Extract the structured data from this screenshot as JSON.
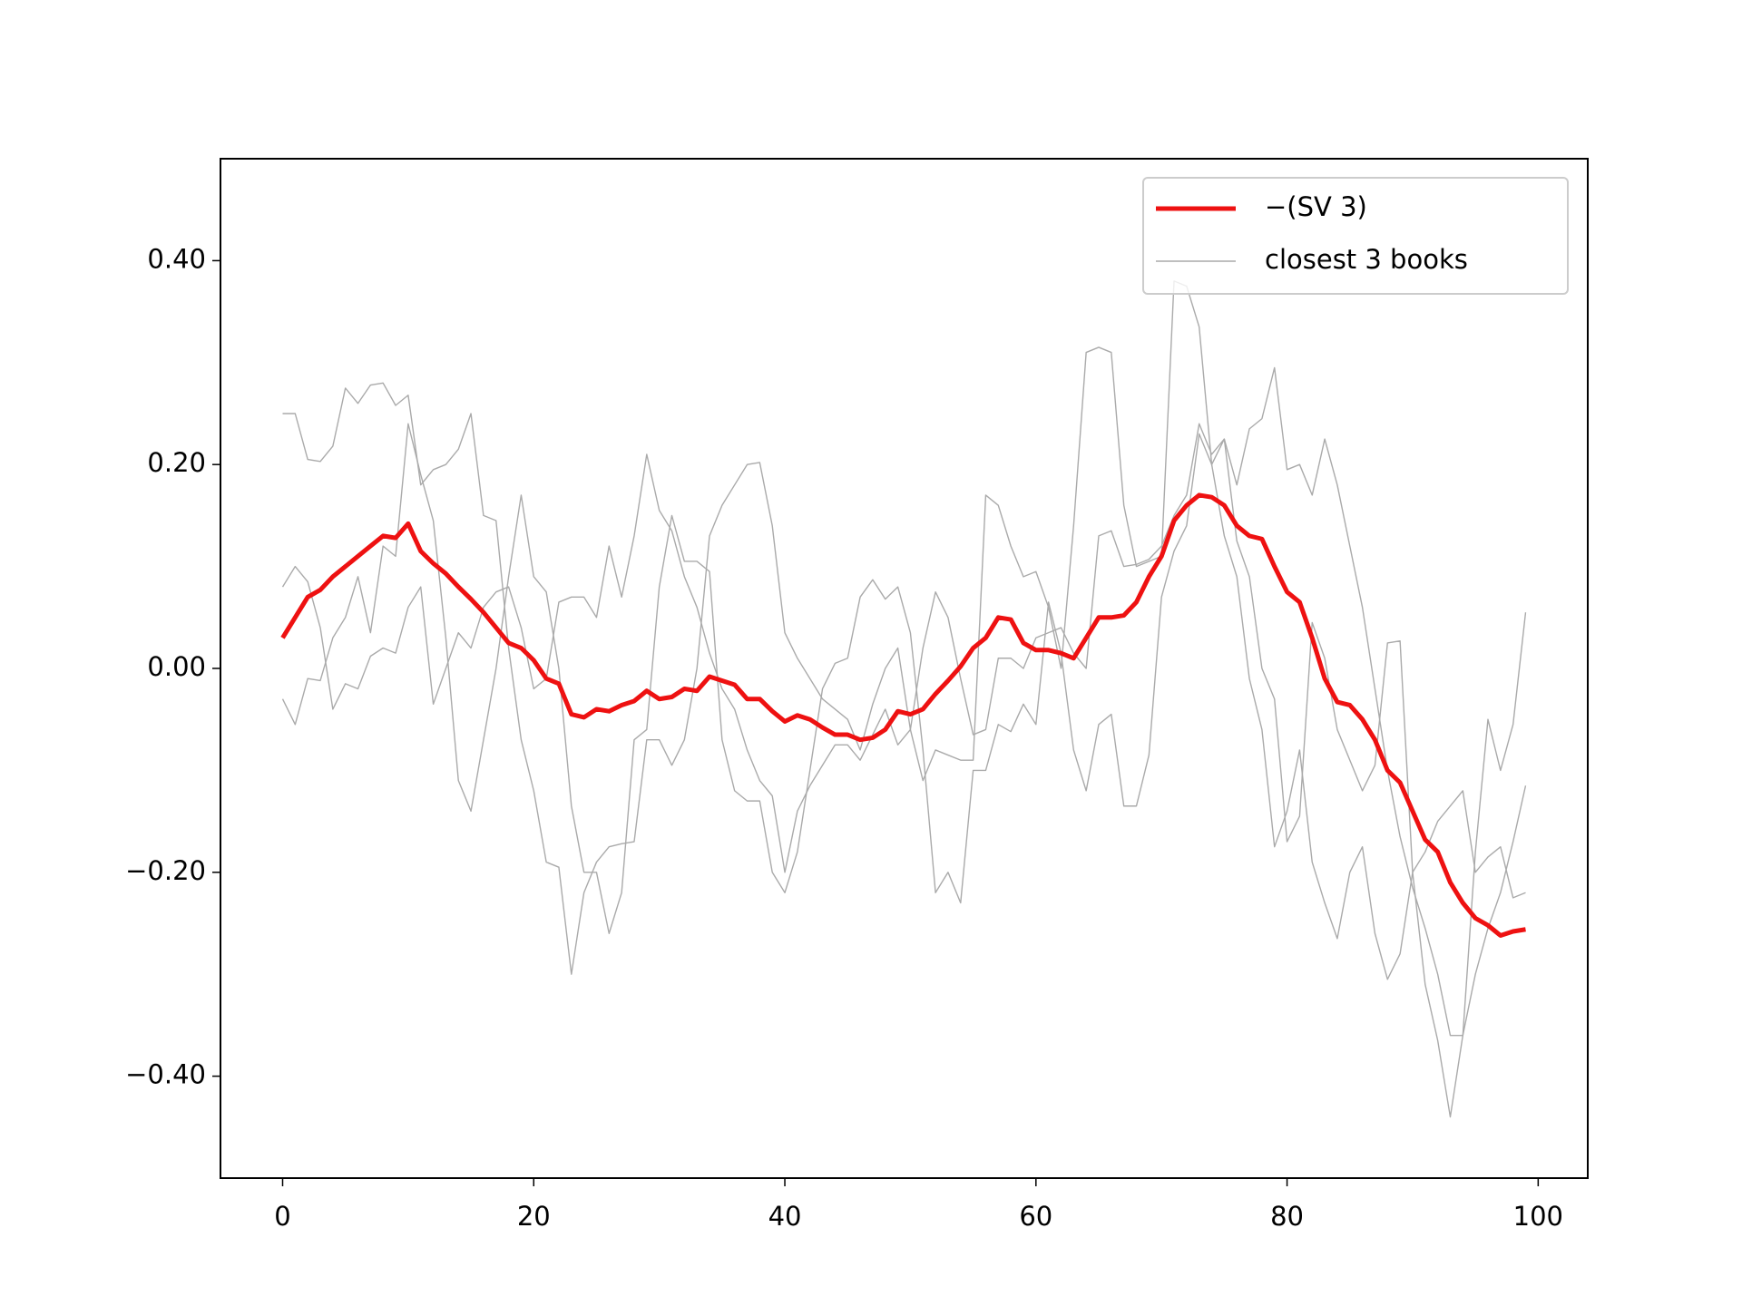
{
  "chart_data": {
    "type": "line",
    "x": [
      0,
      1,
      2,
      3,
      4,
      5,
      6,
      7,
      8,
      9,
      10,
      11,
      12,
      13,
      14,
      15,
      16,
      17,
      18,
      19,
      20,
      21,
      22,
      23,
      24,
      25,
      26,
      27,
      28,
      29,
      30,
      31,
      32,
      33,
      34,
      35,
      36,
      37,
      38,
      39,
      40,
      41,
      42,
      43,
      44,
      45,
      46,
      47,
      48,
      49,
      50,
      51,
      52,
      53,
      54,
      55,
      56,
      57,
      58,
      59,
      60,
      61,
      62,
      63,
      64,
      65,
      66,
      67,
      68,
      69,
      70,
      71,
      72,
      73,
      74,
      75,
      76,
      77,
      78,
      79,
      80,
      81,
      82,
      83,
      84,
      85,
      86,
      87,
      88,
      89,
      90,
      91,
      92,
      93,
      94,
      95,
      96,
      97,
      98,
      99
    ],
    "series": [
      {
        "name": "−(SV 3)",
        "color": "#ee1111",
        "values": [
          0.03,
          0.05,
          0.07,
          0.077,
          0.09,
          0.1,
          0.11,
          0.12,
          0.13,
          0.128,
          0.142,
          0.115,
          0.103,
          0.093,
          0.08,
          0.068,
          0.055,
          0.04,
          0.025,
          0.02,
          0.008,
          -0.01,
          -0.015,
          -0.045,
          -0.048,
          -0.04,
          -0.042,
          -0.036,
          -0.032,
          -0.022,
          -0.03,
          -0.028,
          -0.02,
          -0.022,
          -0.008,
          -0.012,
          -0.016,
          -0.03,
          -0.03,
          -0.042,
          -0.052,
          -0.046,
          -0.05,
          -0.058,
          -0.065,
          -0.065,
          -0.07,
          -0.068,
          -0.06,
          -0.042,
          -0.045,
          -0.04,
          -0.025,
          -0.012,
          0.002,
          0.02,
          0.03,
          0.05,
          0.048,
          0.025,
          0.018,
          0.018,
          0.015,
          0.01,
          0.03,
          0.05,
          0.05,
          0.052,
          0.065,
          0.09,
          0.11,
          0.145,
          0.16,
          0.17,
          0.168,
          0.16,
          0.14,
          0.13,
          0.127,
          0.1,
          0.075,
          0.065,
          0.03,
          -0.01,
          -0.033,
          -0.036,
          -0.05,
          -0.07,
          -0.1,
          -0.112,
          -0.14,
          -0.168,
          -0.18,
          -0.21,
          -0.23,
          -0.245,
          -0.252,
          -0.262,
          -0.258,
          -0.256
        ]
      },
      {
        "name": "closest 3 books",
        "color": "#aaaaaa",
        "values": [
          [
            0.25,
            0.25,
            0.205,
            0.203,
            0.218,
            0.275,
            0.26,
            0.278,
            0.28,
            0.258,
            0.268,
            0.18,
            0.195,
            0.2,
            0.215,
            0.25,
            0.15,
            0.145,
            0.02,
            -0.07,
            -0.12,
            -0.19,
            -0.195,
            -0.3,
            -0.22,
            -0.19,
            -0.175,
            -0.172,
            -0.17,
            -0.07,
            -0.07,
            -0.095,
            -0.07,
            0.0,
            0.13,
            0.16,
            0.18,
            0.2,
            0.202,
            0.14,
            0.035,
            0.01,
            -0.01,
            -0.03,
            -0.04,
            -0.05,
            -0.08,
            -0.035,
            0.0,
            0.02,
            -0.06,
            -0.11,
            -0.08,
            -0.085,
            -0.09,
            -0.09,
            0.17,
            0.16,
            0.12,
            0.09,
            0.095,
            0.06,
            0.0,
            0.14,
            0.31,
            0.315,
            0.31,
            0.16,
            0.1,
            0.105,
            0.11,
            0.38,
            0.375,
            0.335,
            0.2,
            0.13,
            0.09,
            -0.01,
            -0.06,
            -0.175,
            -0.14,
            -0.08,
            -0.19,
            -0.23,
            -0.265,
            -0.2,
            -0.175,
            -0.26,
            -0.305,
            -0.28,
            -0.2,
            -0.18,
            -0.15,
            -0.135,
            -0.12,
            -0.2,
            -0.185,
            -0.175,
            -0.225,
            -0.22
          ],
          [
            0.08,
            0.1,
            0.085,
            0.04,
            -0.04,
            -0.015,
            -0.02,
            0.012,
            0.02,
            0.015,
            0.06,
            0.08,
            -0.035,
            0.0,
            0.035,
            0.02,
            0.06,
            0.075,
            0.08,
            0.04,
            -0.02,
            -0.01,
            0.065,
            0.07,
            0.07,
            0.05,
            0.12,
            0.07,
            0.13,
            0.21,
            0.155,
            0.135,
            0.09,
            0.06,
            0.015,
            -0.02,
            -0.04,
            -0.08,
            -0.11,
            -0.125,
            -0.2,
            -0.14,
            -0.115,
            -0.095,
            -0.075,
            -0.075,
            -0.09,
            -0.065,
            -0.04,
            -0.075,
            -0.06,
            0.02,
            0.075,
            0.05,
            -0.01,
            -0.065,
            -0.06,
            0.01,
            0.01,
            0.0,
            0.03,
            0.035,
            0.04,
            0.015,
            0.0,
            0.13,
            0.135,
            0.1,
            0.102,
            0.107,
            0.12,
            0.15,
            0.17,
            0.24,
            0.21,
            0.225,
            0.18,
            0.235,
            0.245,
            0.295,
            0.195,
            0.2,
            0.17,
            0.225,
            0.18,
            0.12,
            0.06,
            -0.02,
            -0.1,
            -0.165,
            -0.215,
            -0.255,
            -0.3,
            -0.36,
            -0.36,
            -0.18,
            -0.05,
            -0.1,
            -0.055,
            0.055
          ],
          [
            -0.03,
            -0.055,
            -0.01,
            -0.012,
            0.03,
            0.05,
            0.09,
            0.035,
            0.12,
            0.11,
            0.24,
            0.19,
            0.145,
            0.03,
            -0.11,
            -0.14,
            -0.07,
            0.0,
            0.09,
            0.17,
            0.09,
            0.075,
            0.0,
            -0.135,
            -0.2,
            -0.2,
            -0.26,
            -0.22,
            -0.07,
            -0.06,
            0.08,
            0.15,
            0.105,
            0.105,
            0.095,
            -0.07,
            -0.12,
            -0.13,
            -0.13,
            -0.2,
            -0.22,
            -0.18,
            -0.1,
            -0.02,
            0.005,
            0.01,
            0.07,
            0.087,
            0.068,
            0.08,
            0.035,
            -0.08,
            -0.22,
            -0.2,
            -0.23,
            -0.1,
            -0.1,
            -0.055,
            -0.062,
            -0.035,
            -0.055,
            0.065,
            0.015,
            -0.08,
            -0.12,
            -0.055,
            -0.045,
            -0.135,
            -0.135,
            -0.085,
            0.07,
            0.115,
            0.14,
            0.23,
            0.2,
            0.225,
            0.125,
            0.09,
            0.0,
            -0.03,
            -0.17,
            -0.145,
            0.045,
            0.01,
            -0.06,
            -0.09,
            -0.12,
            -0.095,
            0.025,
            0.027,
            -0.2,
            -0.31,
            -0.365,
            -0.44,
            -0.36,
            -0.3,
            -0.255,
            -0.22,
            -0.17,
            -0.115
          ]
        ]
      }
    ],
    "xlim": [
      -4.95,
      103.95
    ],
    "xticks": [
      0,
      20,
      40,
      60,
      80,
      100
    ],
    "ylim": [
      -0.5,
      0.5
    ],
    "yticks": [
      {
        "value": -0.4,
        "label": "−0.40"
      },
      {
        "value": -0.2,
        "label": "−0.20"
      },
      {
        "value": 0,
        "label": "0.00"
      },
      {
        "value": 0.2,
        "label": "0.20"
      },
      {
        "value": 0.4,
        "label": "0.40"
      }
    ],
    "legend": "upper right"
  }
}
